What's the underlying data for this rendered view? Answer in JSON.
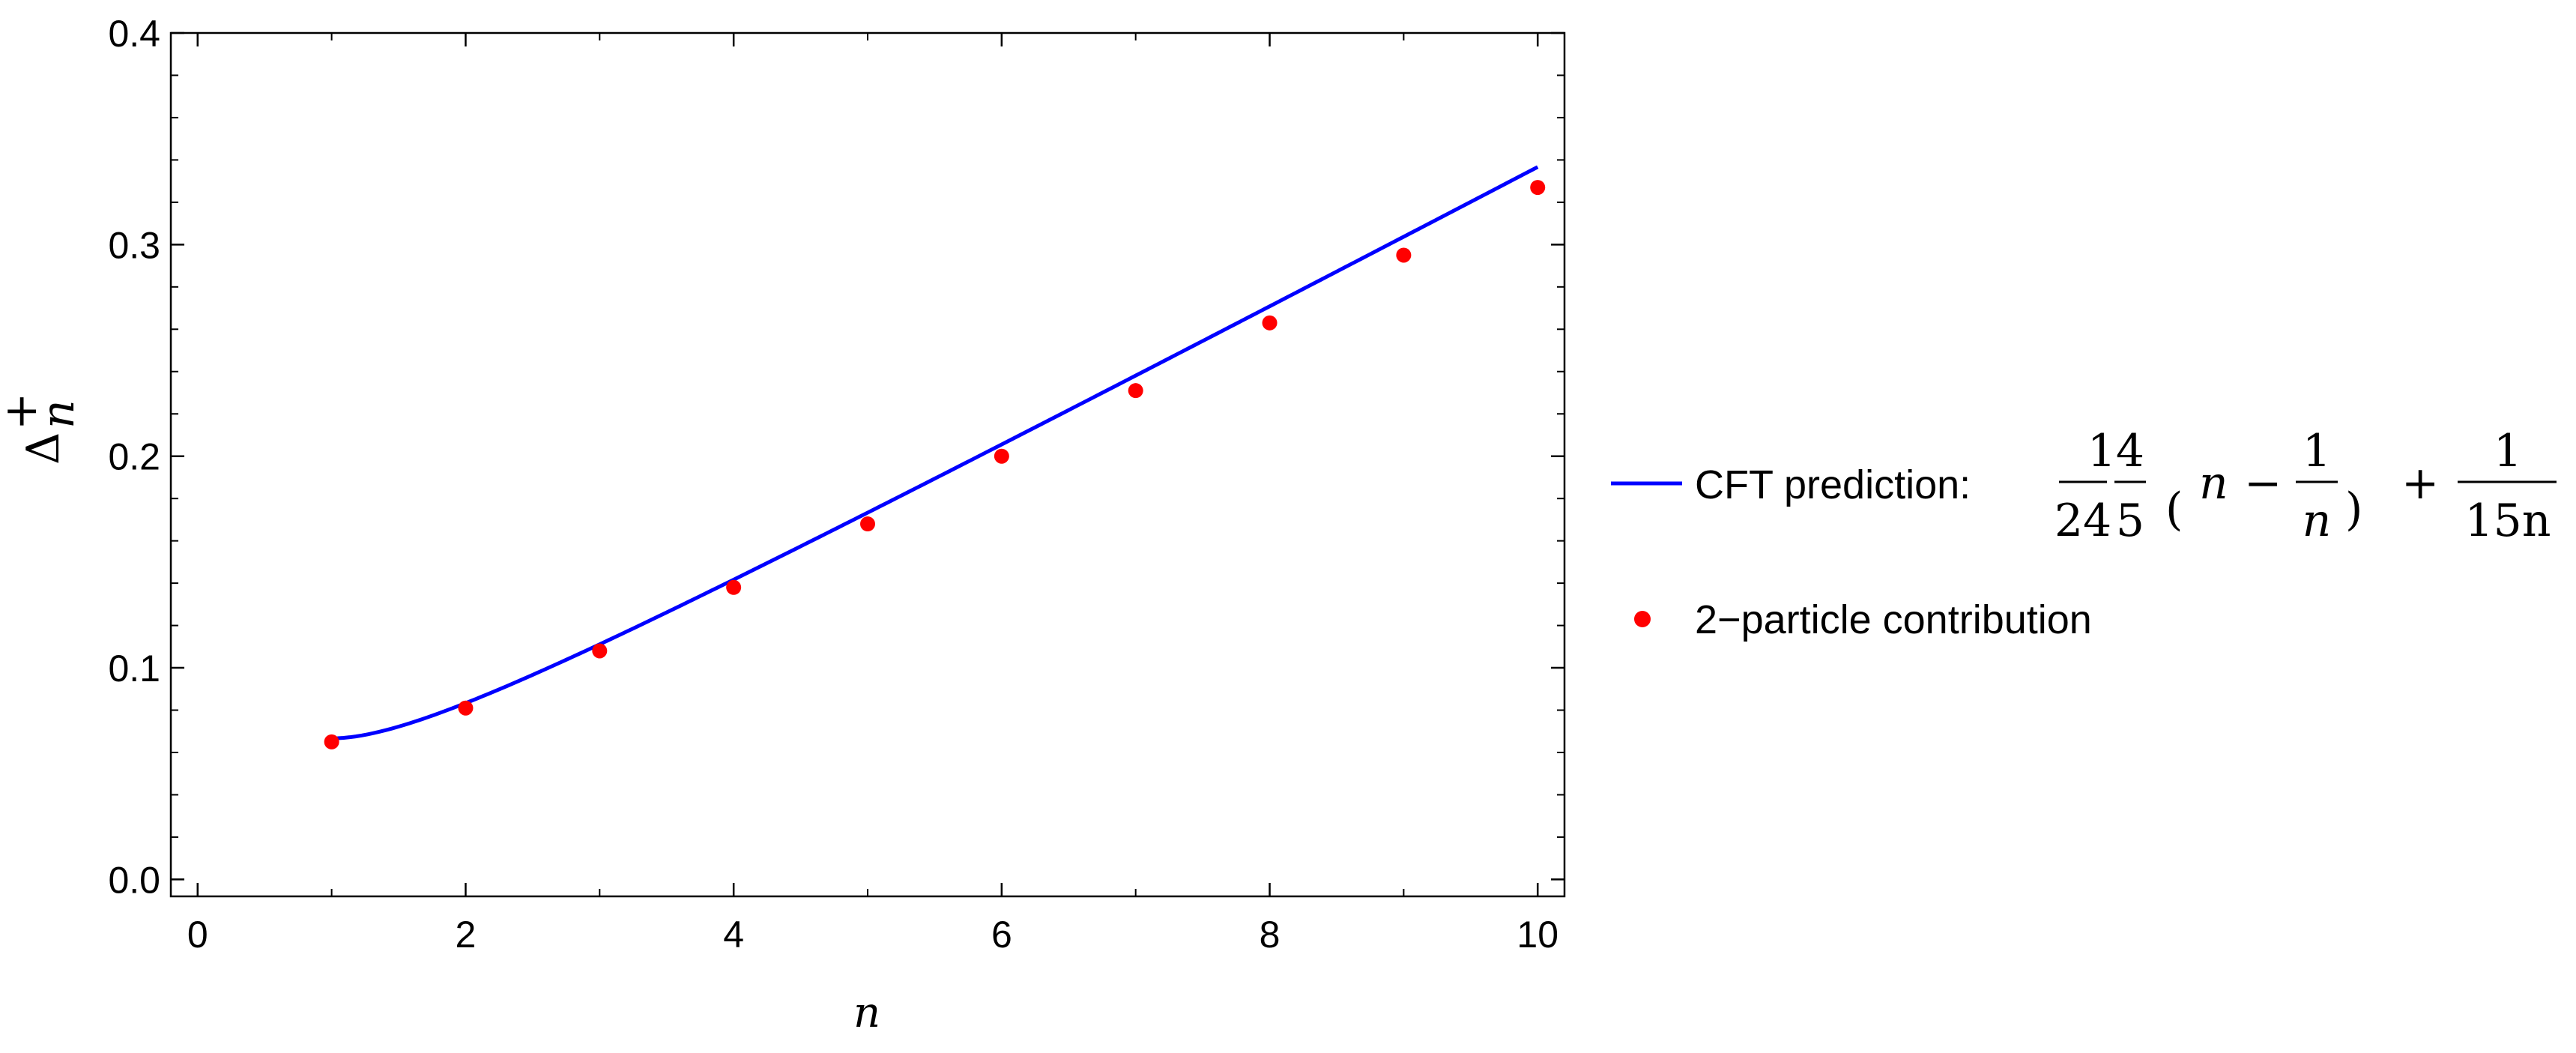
{
  "chart_data": {
    "type": "line",
    "x_ticks": [
      0,
      2,
      4,
      6,
      8,
      10
    ],
    "y_ticks": [
      0.0,
      0.1,
      0.2,
      0.3,
      0.4
    ],
    "x_tick_labels": [
      "0",
      "2",
      "4",
      "6",
      "8",
      "10"
    ],
    "y_tick_labels": [
      "0.0",
      "0.1",
      "0.2",
      "0.3",
      "0.4"
    ],
    "xlim": [
      -0.2,
      10.2
    ],
    "ylim": [
      -0.008,
      0.4
    ],
    "xlabel": "n",
    "ylabel": {
      "base": "Δ",
      "sup": "+",
      "sub": "n"
    },
    "grid": false,
    "legend_placement": "right",
    "series": [
      {
        "name": "CFT prediction:",
        "kind": "line",
        "color": "#0000ff",
        "formula": "(1/24)(4/5)(n - 1/n) + 1/(15n)",
        "x_range": [
          1,
          10
        ],
        "formula_parts": {
          "f1_num": "1",
          "f1_den": "24",
          "f2_num": "4",
          "f2_den": "5",
          "paren_open": "(",
          "n": "n",
          "minus": "−",
          "f3_num": "1",
          "f3_den": "n",
          "paren_close": ")",
          "plus": "+",
          "f4_num": "1",
          "f4_den": "15n"
        }
      },
      {
        "name": "2−particle contribution",
        "kind": "scatter",
        "color": "#ff0000",
        "points": [
          {
            "x": 1,
            "y": 0.065
          },
          {
            "x": 2,
            "y": 0.081
          },
          {
            "x": 3,
            "y": 0.108
          },
          {
            "x": 4,
            "y": 0.138
          },
          {
            "x": 5,
            "y": 0.168
          },
          {
            "x": 6,
            "y": 0.2
          },
          {
            "x": 7,
            "y": 0.231
          },
          {
            "x": 8,
            "y": 0.263
          },
          {
            "x": 9,
            "y": 0.295
          },
          {
            "x": 10,
            "y": 0.327
          }
        ]
      }
    ]
  }
}
